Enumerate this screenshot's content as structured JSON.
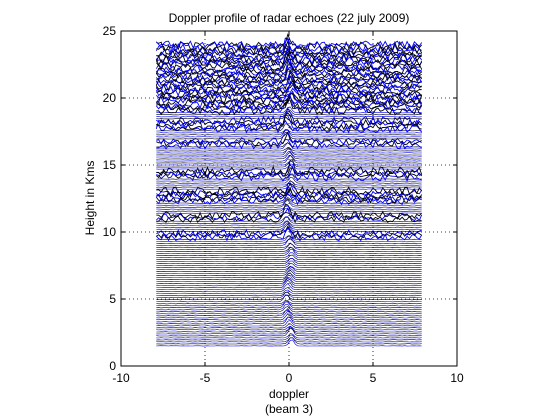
{
  "chart_data": {
    "type": "line",
    "title": "Doppler profile of radar echoes (22 july 2009)",
    "xlabel_line1": "doppler",
    "xlabel_line2": "(beam 3)",
    "ylabel": "Height in Kms",
    "xlim": [
      -10,
      10
    ],
    "ylim": [
      0,
      25
    ],
    "x_ticks": [
      -10,
      -5,
      0,
      5,
      10
    ],
    "y_ticks": [
      0,
      5,
      10,
      15,
      20,
      25
    ],
    "grid": true,
    "series_color": "#0000ff",
    "profile_height_range": [
      1.5,
      24.0
    ],
    "profile_doppler_range": [
      -7.9,
      7.9
    ],
    "profile_spacing_km": 0.15,
    "echo_peak_doppler": 0.0,
    "noisy_height_bands": [
      [
        9.6,
        10.0
      ],
      [
        10.9,
        11.3
      ],
      [
        12.2,
        13.2
      ],
      [
        14.0,
        14.6
      ],
      [
        16.4,
        16.9
      ],
      [
        17.6,
        18.4
      ],
      [
        19.0,
        24.0
      ]
    ]
  }
}
